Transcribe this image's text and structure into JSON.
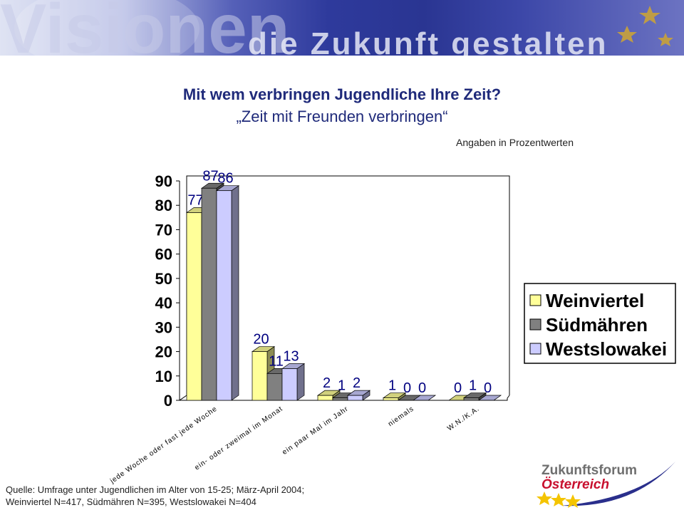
{
  "banner": {
    "word": "Visionen",
    "tagline": "die Zukunft gestalten"
  },
  "title": "Mit wem verbringen Jugendliche Ihre Zeit?",
  "subtitle": "„Zeit mit Freunden verbringen“",
  "units_note": "Angaben in  Prozentwerten",
  "source_line1": "Quelle: Umfrage unter Jugendlichen im Alter von 15-25; März-April 2004;",
  "source_line2": "Weinviertel N=417, Südmähren N=395, Westslowakei N=404",
  "logo": {
    "line1": "Zukunftsforum",
    "line2": "Österreich"
  },
  "colors": {
    "title": "#1f2a7a",
    "weinviertel": "#ffff99",
    "suedmaehren": "#808080",
    "westslowakei": "#ccccff",
    "label": "#000080"
  },
  "chart_data": {
    "type": "bar",
    "categories": [
      "jede Woche oder fast jede Woche",
      "ein- oder zweimal im Monat",
      "ein paar Mal im Jahr",
      "niemals",
      "W.N./K.A."
    ],
    "series": [
      {
        "name": "Weinviertel",
        "values": [
          77,
          20,
          2,
          1,
          0
        ]
      },
      {
        "name": "Südmähren",
        "values": [
          87,
          11,
          1,
          0,
          1
        ]
      },
      {
        "name": "Westslowakei",
        "values": [
          86,
          13,
          2,
          0,
          0
        ]
      }
    ],
    "ylim": [
      0,
      90
    ],
    "yticks": [
      "0",
      "10",
      "20",
      "30",
      "40",
      "50",
      "60",
      "70",
      "80",
      "90"
    ],
    "grid": false,
    "legend": "right",
    "style": "3d-bar"
  }
}
